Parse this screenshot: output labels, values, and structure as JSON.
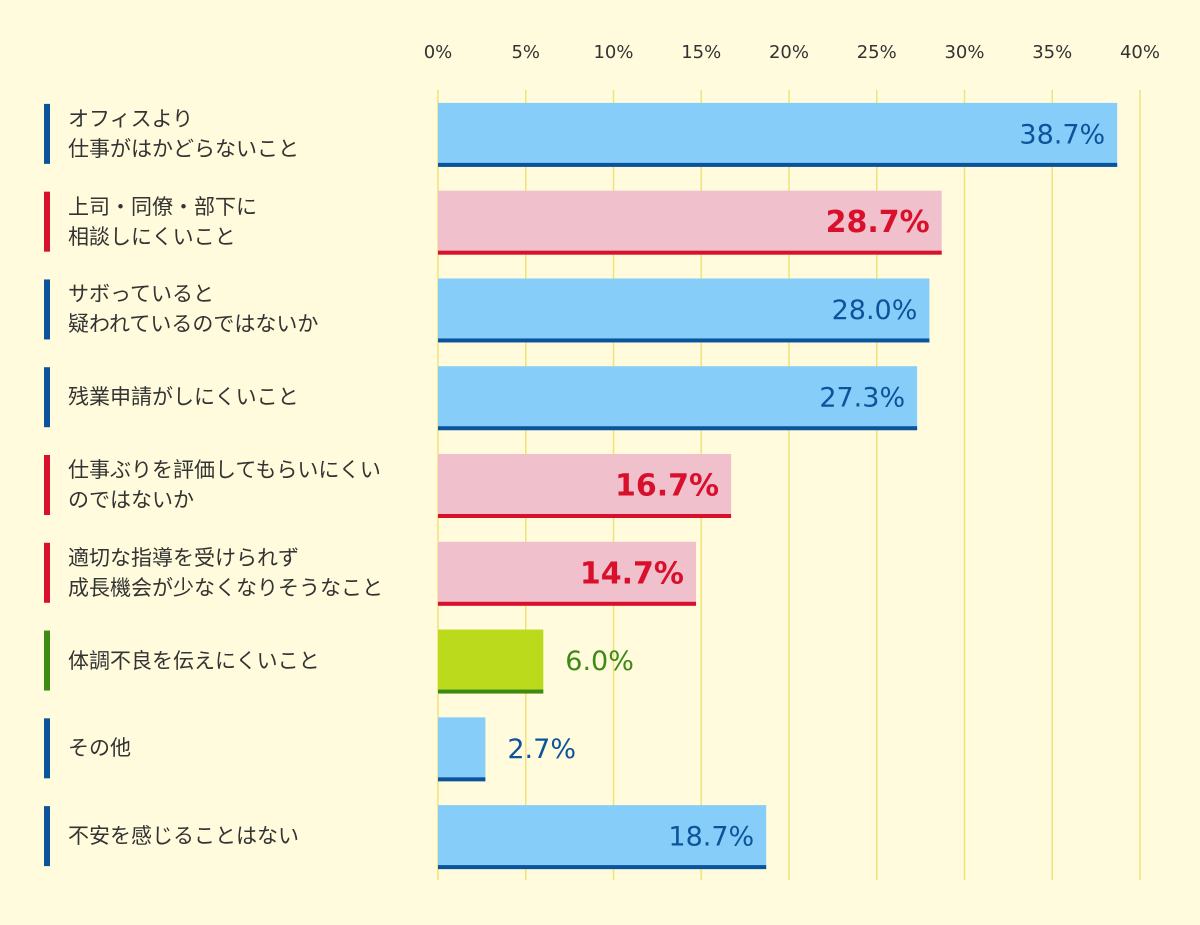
{
  "chart_data": {
    "type": "bar",
    "orientation": "horizontal",
    "categories": [
      "オフィスより\n仕事がはかどらないこと",
      "上司・同僚・部下に\n相談しにくいこと",
      "サボっていると\n疑われているのではないか",
      "残業申請がしにくいこと",
      "仕事ぶりを評価してもらいにくい\nのではないか",
      "適切な指導を受けられず\n成長機会が少なくなりそうなこと",
      "体調不良を伝えにくいこと",
      "その他",
      "不安を感じることはない"
    ],
    "values": [
      38.7,
      28.7,
      28.0,
      27.3,
      16.7,
      14.7,
      6.0,
      2.7,
      18.7
    ],
    "value_labels": [
      "38.7%",
      "28.7%",
      "28.0%",
      "27.3%",
      "16.7%",
      "14.7%",
      "6.0%",
      "2.7%",
      "18.7%"
    ],
    "colors": [
      "#87cdf9",
      "#f0c1cd",
      "#87cdf9",
      "#87cdf9",
      "#f0c1cd",
      "#f0c1cd",
      "#bcda1c",
      "#87cdf9",
      "#87cdf9"
    ],
    "accent_colors": [
      "#0b549c",
      "#d9102b",
      "#0b549c",
      "#0b549c",
      "#d9102b",
      "#d9102b",
      "#3d8a14",
      "#0b549c",
      "#0b549c"
    ],
    "emphasis": [
      false,
      true,
      false,
      false,
      true,
      true,
      false,
      false,
      false
    ],
    "xlim": [
      0,
      40
    ],
    "xticks": [
      {
        "value": 0,
        "label": "0%"
      },
      {
        "value": 5,
        "label": "5%"
      },
      {
        "value": 10,
        "label": "10%"
      },
      {
        "value": 15,
        "label": "15%"
      },
      {
        "value": 20,
        "label": "20%"
      },
      {
        "value": 25,
        "label": "25%"
      },
      {
        "value": 30,
        "label": "30%"
      },
      {
        "value": 35,
        "label": "35%"
      },
      {
        "value": 40,
        "label": "40%"
      }
    ],
    "grid": true
  }
}
